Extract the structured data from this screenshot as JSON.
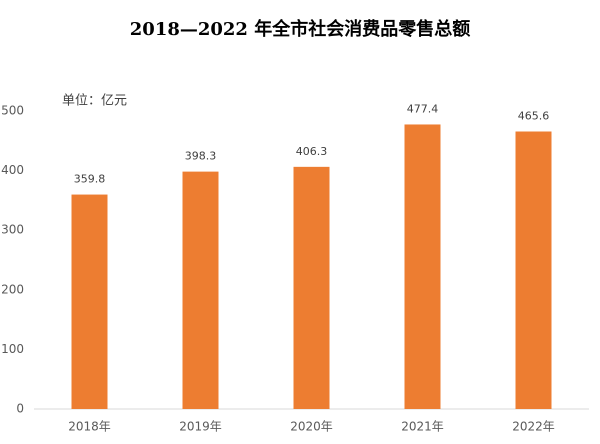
{
  "chart_data": {
    "type": "bar",
    "title": "2018—2022 年全市社会消费品零售总额",
    "annotation": "单位：亿元",
    "categories": [
      "2018年",
      "2019年",
      "2020年",
      "2021年",
      "2022年"
    ],
    "values": [
      359.8,
      398.3,
      406.3,
      477.4,
      465.6
    ],
    "color": "#ed7d31",
    "ylim": [
      0,
      500
    ],
    "yticks": [
      0,
      100,
      200,
      300,
      400,
      500
    ],
    "grid": false
  }
}
